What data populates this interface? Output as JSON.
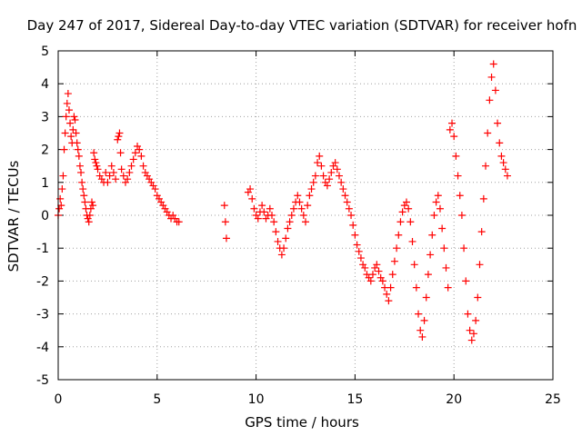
{
  "chart_data": {
    "type": "scatter",
    "title": "Day 247 of 2017, Sidereal Day-to-day VTEC variation (SDTVAR) for receiver hofn",
    "xlabel": "GPS time / hours",
    "ylabel": "SDTVAR / TECUs",
    "xlim": [
      0,
      25
    ],
    "ylim": [
      -5,
      5
    ],
    "grid": true,
    "marker": "plus",
    "color": "#ff0000",
    "xticks": [
      0,
      5,
      10,
      15,
      20,
      25
    ],
    "yticks": [
      -5,
      -4,
      -3,
      -2,
      -1,
      0,
      1,
      2,
      3,
      4,
      5
    ],
    "xtick_labels": [
      "0",
      "5",
      "10",
      "15",
      "20",
      "25"
    ],
    "ytick_labels": [
      "-5",
      "-4",
      "-3",
      "-2",
      "-1",
      "0",
      "1",
      "2",
      "3",
      "4",
      "5"
    ],
    "series": [
      {
        "name": "SDTVAR",
        "points": [
          [
            0.0,
            0.0
          ],
          [
            0.05,
            0.2
          ],
          [
            0.1,
            0.5
          ],
          [
            0.15,
            0.3
          ],
          [
            0.2,
            0.8
          ],
          [
            0.25,
            1.2
          ],
          [
            0.3,
            2.0
          ],
          [
            0.35,
            2.5
          ],
          [
            0.4,
            3.0
          ],
          [
            0.45,
            3.4
          ],
          [
            0.5,
            3.7
          ],
          [
            0.55,
            3.2
          ],
          [
            0.6,
            2.8
          ],
          [
            0.65,
            2.4
          ],
          [
            0.7,
            2.2
          ],
          [
            0.75,
            2.6
          ],
          [
            0.8,
            3.0
          ],
          [
            0.85,
            2.9
          ],
          [
            0.9,
            2.5
          ],
          [
            0.95,
            2.2
          ],
          [
            1.0,
            2.0
          ],
          [
            1.05,
            1.8
          ],
          [
            1.1,
            1.5
          ],
          [
            1.15,
            1.3
          ],
          [
            1.2,
            1.0
          ],
          [
            1.25,
            0.8
          ],
          [
            1.3,
            0.6
          ],
          [
            1.35,
            0.4
          ],
          [
            1.4,
            0.2
          ],
          [
            1.45,
            0.0
          ],
          [
            1.5,
            -0.1
          ],
          [
            1.55,
            -0.2
          ],
          [
            1.6,
            0.0
          ],
          [
            1.65,
            0.2
          ],
          [
            1.7,
            0.4
          ],
          [
            1.75,
            0.3
          ],
          [
            1.8,
            1.9
          ],
          [
            1.85,
            1.7
          ],
          [
            1.9,
            1.6
          ],
          [
            1.95,
            1.5
          ],
          [
            2.0,
            1.4
          ],
          [
            2.1,
            1.2
          ],
          [
            2.2,
            1.1
          ],
          [
            2.3,
            1.0
          ],
          [
            2.4,
            1.3
          ],
          [
            2.5,
            1.0
          ],
          [
            2.6,
            1.2
          ],
          [
            2.7,
            1.5
          ],
          [
            2.8,
            1.3
          ],
          [
            2.9,
            1.1
          ],
          [
            3.0,
            2.3
          ],
          [
            3.05,
            2.4
          ],
          [
            3.1,
            2.5
          ],
          [
            3.15,
            1.9
          ],
          [
            3.2,
            1.4
          ],
          [
            3.3,
            1.2
          ],
          [
            3.4,
            1.0
          ],
          [
            3.5,
            1.1
          ],
          [
            3.6,
            1.3
          ],
          [
            3.7,
            1.5
          ],
          [
            3.8,
            1.7
          ],
          [
            3.9,
            1.9
          ],
          [
            4.0,
            2.1
          ],
          [
            4.1,
            2.0
          ],
          [
            4.2,
            1.8
          ],
          [
            4.3,
            1.5
          ],
          [
            4.4,
            1.3
          ],
          [
            4.5,
            1.2
          ],
          [
            4.6,
            1.1
          ],
          [
            4.7,
            1.0
          ],
          [
            4.8,
            0.9
          ],
          [
            4.9,
            0.8
          ],
          [
            5.0,
            0.6
          ],
          [
            5.1,
            0.5
          ],
          [
            5.2,
            0.4
          ],
          [
            5.3,
            0.3
          ],
          [
            5.4,
            0.2
          ],
          [
            5.5,
            0.1
          ],
          [
            5.6,
            0.0
          ],
          [
            5.7,
            -0.1
          ],
          [
            5.8,
            0.0
          ],
          [
            5.9,
            -0.1
          ],
          [
            6.0,
            -0.2
          ],
          [
            6.1,
            -0.2
          ],
          [
            8.4,
            0.3
          ],
          [
            8.45,
            -0.2
          ],
          [
            8.5,
            -0.7
          ],
          [
            9.6,
            0.7
          ],
          [
            9.7,
            0.8
          ],
          [
            9.8,
            0.5
          ],
          [
            9.9,
            0.2
          ],
          [
            10.0,
            0.0
          ],
          [
            10.1,
            -0.1
          ],
          [
            10.2,
            0.1
          ],
          [
            10.3,
            0.3
          ],
          [
            10.4,
            0.1
          ],
          [
            10.5,
            -0.1
          ],
          [
            10.6,
            0.0
          ],
          [
            10.7,
            0.2
          ],
          [
            10.8,
            0.0
          ],
          [
            10.9,
            -0.2
          ],
          [
            11.0,
            -0.5
          ],
          [
            11.1,
            -0.8
          ],
          [
            11.2,
            -1.0
          ],
          [
            11.3,
            -1.2
          ],
          [
            11.4,
            -1.0
          ],
          [
            11.5,
            -0.7
          ],
          [
            11.6,
            -0.4
          ],
          [
            11.7,
            -0.2
          ],
          [
            11.8,
            0.0
          ],
          [
            11.9,
            0.2
          ],
          [
            12.0,
            0.4
          ],
          [
            12.1,
            0.6
          ],
          [
            12.2,
            0.4
          ],
          [
            12.3,
            0.2
          ],
          [
            12.4,
            0.0
          ],
          [
            12.5,
            -0.2
          ],
          [
            12.6,
            0.3
          ],
          [
            12.7,
            0.6
          ],
          [
            12.8,
            0.8
          ],
          [
            12.9,
            1.0
          ],
          [
            13.0,
            1.2
          ],
          [
            13.1,
            1.6
          ],
          [
            13.2,
            1.8
          ],
          [
            13.3,
            1.5
          ],
          [
            13.4,
            1.2
          ],
          [
            13.5,
            1.0
          ],
          [
            13.6,
            0.9
          ],
          [
            13.7,
            1.1
          ],
          [
            13.8,
            1.3
          ],
          [
            13.9,
            1.5
          ],
          [
            14.0,
            1.6
          ],
          [
            14.1,
            1.4
          ],
          [
            14.2,
            1.2
          ],
          [
            14.3,
            1.0
          ],
          [
            14.4,
            0.8
          ],
          [
            14.5,
            0.6
          ],
          [
            14.6,
            0.4
          ],
          [
            14.7,
            0.2
          ],
          [
            14.8,
            0.0
          ],
          [
            14.9,
            -0.3
          ],
          [
            15.0,
            -0.6
          ],
          [
            15.1,
            -0.9
          ],
          [
            15.2,
            -1.1
          ],
          [
            15.3,
            -1.3
          ],
          [
            15.4,
            -1.5
          ],
          [
            15.5,
            -1.6
          ],
          [
            15.6,
            -1.8
          ],
          [
            15.7,
            -1.9
          ],
          [
            15.8,
            -2.0
          ],
          [
            15.9,
            -1.8
          ],
          [
            16.0,
            -1.6
          ],
          [
            16.1,
            -1.5
          ],
          [
            16.2,
            -1.7
          ],
          [
            16.3,
            -1.9
          ],
          [
            16.4,
            -2.0
          ],
          [
            16.5,
            -2.2
          ],
          [
            16.6,
            -2.4
          ],
          [
            16.7,
            -2.6
          ],
          [
            16.8,
            -2.2
          ],
          [
            16.9,
            -1.8
          ],
          [
            17.0,
            -1.4
          ],
          [
            17.1,
            -1.0
          ],
          [
            17.2,
            -0.6
          ],
          [
            17.3,
            -0.2
          ],
          [
            17.4,
            0.1
          ],
          [
            17.5,
            0.3
          ],
          [
            17.6,
            0.4
          ],
          [
            17.7,
            0.2
          ],
          [
            17.8,
            -0.2
          ],
          [
            17.9,
            -0.8
          ],
          [
            18.0,
            -1.5
          ],
          [
            18.1,
            -2.2
          ],
          [
            18.2,
            -3.0
          ],
          [
            18.3,
            -3.5
          ],
          [
            18.4,
            -3.7
          ],
          [
            18.5,
            -3.2
          ],
          [
            18.6,
            -2.5
          ],
          [
            18.7,
            -1.8
          ],
          [
            18.8,
            -1.2
          ],
          [
            18.9,
            -0.6
          ],
          [
            19.0,
            0.0
          ],
          [
            19.1,
            0.4
          ],
          [
            19.2,
            0.6
          ],
          [
            19.3,
            0.2
          ],
          [
            19.4,
            -0.4
          ],
          [
            19.5,
            -1.0
          ],
          [
            19.6,
            -1.6
          ],
          [
            19.7,
            -2.2
          ],
          [
            19.8,
            2.6
          ],
          [
            19.9,
            2.8
          ],
          [
            20.0,
            2.4
          ],
          [
            20.1,
            1.8
          ],
          [
            20.2,
            1.2
          ],
          [
            20.3,
            0.6
          ],
          [
            20.4,
            0.0
          ],
          [
            20.5,
            -1.0
          ],
          [
            20.6,
            -2.0
          ],
          [
            20.7,
            -3.0
          ],
          [
            20.8,
            -3.5
          ],
          [
            20.9,
            -3.8
          ],
          [
            21.0,
            -3.6
          ],
          [
            21.1,
            -3.2
          ],
          [
            21.2,
            -2.5
          ],
          [
            21.3,
            -1.5
          ],
          [
            21.4,
            -0.5
          ],
          [
            21.5,
            0.5
          ],
          [
            21.6,
            1.5
          ],
          [
            21.7,
            2.5
          ],
          [
            21.8,
            3.5
          ],
          [
            21.9,
            4.2
          ],
          [
            22.0,
            4.6
          ],
          [
            22.1,
            3.8
          ],
          [
            22.2,
            2.8
          ],
          [
            22.3,
            2.2
          ],
          [
            22.4,
            1.8
          ],
          [
            22.5,
            1.6
          ],
          [
            22.6,
            1.4
          ],
          [
            22.7,
            1.2
          ]
        ]
      }
    ]
  }
}
